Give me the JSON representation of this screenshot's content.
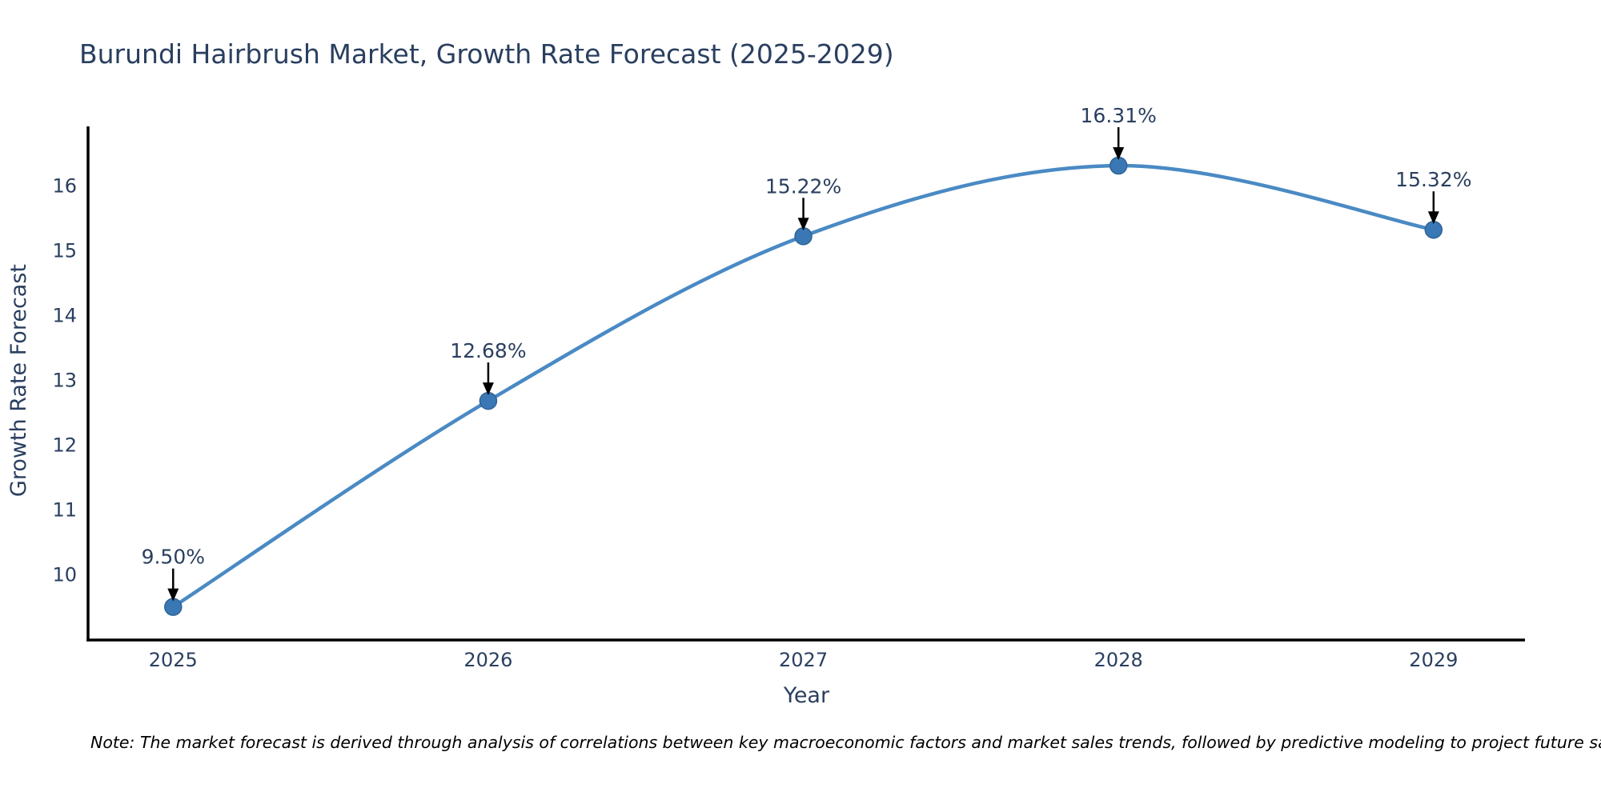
{
  "note": "Note: The market forecast is derived through analysis of correlations between key macroeconomic factors and market sales trends, followed by predictive modeling to project future sales",
  "chart_data": {
    "type": "line",
    "title": "Burundi Hairbrush Market, Growth Rate Forecast (2025-2029)",
    "xlabel": "Year",
    "ylabel": "Growth Rate Forecast",
    "x": [
      2025,
      2026,
      2027,
      2028,
      2029
    ],
    "y": [
      9.5,
      12.68,
      15.22,
      16.31,
      15.32
    ],
    "point_labels": [
      "9.50%",
      "12.68%",
      "15.22%",
      "16.31%",
      "15.32%"
    ],
    "xticks": [
      2025,
      2026,
      2027,
      2028,
      2029
    ],
    "yticks": [
      10,
      11,
      12,
      13,
      14,
      15,
      16
    ],
    "xlim": [
      2024.73,
      2029.29
    ],
    "ylim": [
      8.99,
      16.89
    ],
    "line_shape": "spline",
    "grid": false,
    "legend_position": "none",
    "colors": {
      "line": "#4a8ac4",
      "marker": "#3a78b5",
      "marker_edge": "#2f6496",
      "axis": "#000000",
      "text": "#2a3f5f",
      "annotation_arrow": "#000000"
    }
  }
}
